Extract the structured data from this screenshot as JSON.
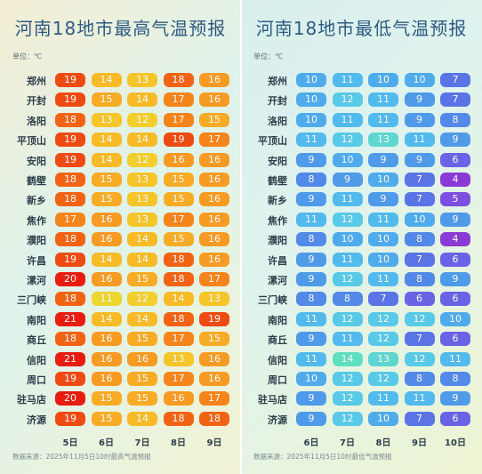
{
  "chart_data": [
    {
      "type": "table",
      "title": "河南18地市最高气温预报",
      "unit_label": "单位：℃",
      "cities": [
        "郑州",
        "开封",
        "洛阳",
        "平顶山",
        "安阳",
        "鹤壁",
        "新乡",
        "焦作",
        "濮阳",
        "许昌",
        "漯河",
        "三门峡",
        "南阳",
        "商丘",
        "信阳",
        "周口",
        "驻马店",
        "济源"
      ],
      "days": [
        "5日",
        "6日",
        "7日",
        "8日",
        "9日"
      ],
      "values": [
        [
          19,
          14,
          13,
          18,
          16
        ],
        [
          19,
          15,
          14,
          17,
          16
        ],
        [
          18,
          13,
          12,
          17,
          15
        ],
        [
          19,
          14,
          14,
          19,
          17
        ],
        [
          19,
          14,
          12,
          16,
          16
        ],
        [
          18,
          15,
          13,
          15,
          16
        ],
        [
          18,
          15,
          13,
          15,
          16
        ],
        [
          17,
          16,
          13,
          17,
          16
        ],
        [
          18,
          16,
          14,
          15,
          16
        ],
        [
          19,
          14,
          14,
          18,
          16
        ],
        [
          20,
          16,
          15,
          18,
          17
        ],
        [
          18,
          11,
          12,
          14,
          13
        ],
        [
          21,
          14,
          14,
          18,
          19
        ],
        [
          18,
          16,
          15,
          17,
          15
        ],
        [
          21,
          16,
          16,
          13,
          16
        ],
        [
          19,
          16,
          15,
          17,
          16
        ],
        [
          20,
          15,
          15,
          16,
          17
        ],
        [
          19,
          15,
          14,
          18,
          18
        ]
      ],
      "source": "数据来源：2025年11月5日10时最高气温预报"
    },
    {
      "type": "table",
      "title": "河南18地市最低气温预报",
      "unit_label": "单位：℃",
      "cities": [
        "郑州",
        "开封",
        "洛阳",
        "平顶山",
        "安阳",
        "鹤壁",
        "新乡",
        "焦作",
        "濮阳",
        "许昌",
        "漯河",
        "三门峡",
        "南阳",
        "商丘",
        "信阳",
        "周口",
        "驻马店",
        "济源"
      ],
      "days": [
        "6日",
        "7日",
        "8日",
        "9日",
        "10日"
      ],
      "values": [
        [
          10,
          11,
          10,
          10,
          7
        ],
        [
          10,
          12,
          11,
          9,
          7
        ],
        [
          10,
          11,
          11,
          9,
          8
        ],
        [
          11,
          12,
          13,
          11,
          9
        ],
        [
          9,
          10,
          9,
          9,
          6
        ],
        [
          8,
          9,
          10,
          7,
          4
        ],
        [
          9,
          11,
          9,
          7,
          5
        ],
        [
          11,
          12,
          11,
          10,
          9
        ],
        [
          8,
          10,
          10,
          8,
          4
        ],
        [
          9,
          11,
          10,
          7,
          6
        ],
        [
          9,
          12,
          11,
          8,
          9
        ],
        [
          8,
          8,
          7,
          6,
          6
        ],
        [
          11,
          12,
          12,
          12,
          10
        ],
        [
          9,
          11,
          12,
          7,
          6
        ],
        [
          11,
          14,
          13,
          12,
          11
        ],
        [
          10,
          12,
          12,
          8,
          8
        ],
        [
          9,
          12,
          11,
          11,
          9
        ],
        [
          9,
          12,
          10,
          7,
          6
        ]
      ],
      "source": "数据来源：2025年11月5日10时最低气温预报"
    }
  ]
}
